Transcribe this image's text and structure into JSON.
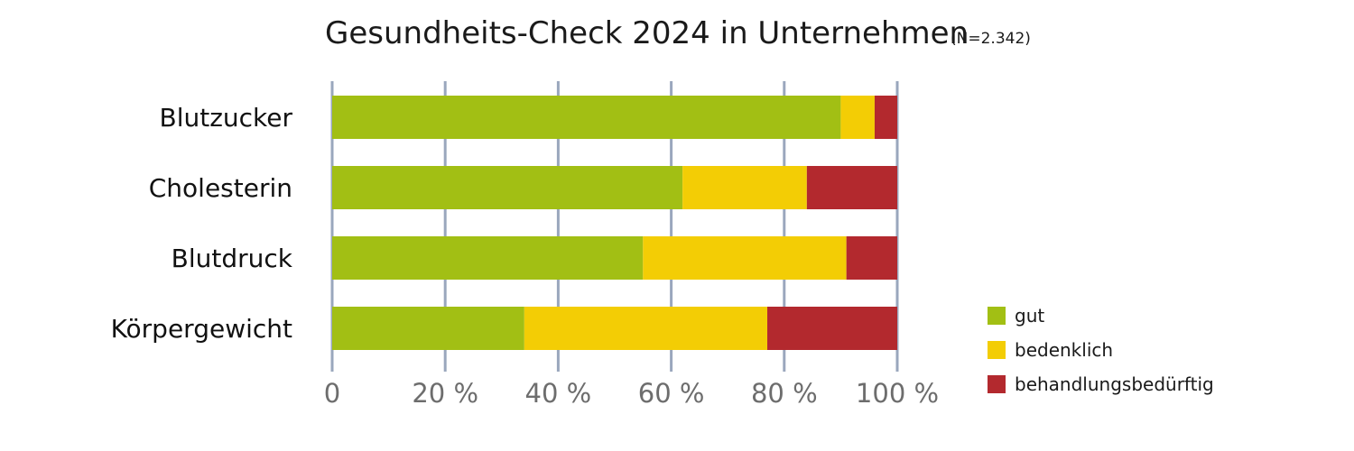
{
  "chart_data": {
    "type": "bar",
    "orientation": "horizontal",
    "stacked": true,
    "title": "Gesundheits-Check 2024 in Unternehmen",
    "subtitle": "(N=2.342)",
    "categories": [
      "Blutzucker",
      "Cholesterin",
      "Blutdruck",
      "Körpergewicht"
    ],
    "series": [
      {
        "name": "gut",
        "color": "#a2bf14",
        "values": [
          90,
          62,
          55,
          34
        ]
      },
      {
        "name": "bedenklich",
        "color": "#f3cd05",
        "values": [
          6,
          22,
          36,
          43
        ]
      },
      {
        "name": "behandlungsbedürftig",
        "color": "#b3292e",
        "values": [
          4,
          16,
          9,
          23
        ]
      }
    ],
    "xlim": [
      0,
      100
    ],
    "x_ticks": [
      0,
      20,
      40,
      60,
      80,
      100
    ],
    "x_tick_labels": [
      "0",
      "20 %",
      "40 %",
      "60 %",
      "80 %",
      "100 %"
    ],
    "gridline_color": "#9aa7bd",
    "grid": true,
    "legend_position": "bottom-right"
  }
}
